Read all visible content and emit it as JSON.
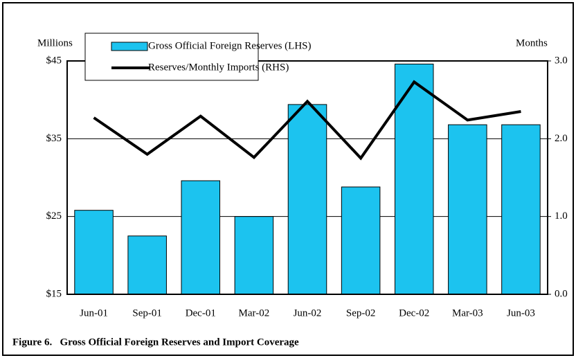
{
  "chart_data": {
    "type": "bar",
    "caption": "Figure 6.   Gross Official Foreign Reserves and Import Coverage",
    "y_label": "Millions",
    "y2_label": "Months",
    "categories": [
      "Jun-01",
      "Sep-01",
      "Dec-01",
      "Mar-02",
      "Jun-02",
      "Sep-02",
      "Dec-02",
      "Mar-03",
      "Jun-03"
    ],
    "series": [
      {
        "name": "Gross Official Foreign Reserves (LHS)",
        "type": "bar",
        "color": "#1cc3ef",
        "values": [
          25.8,
          22.5,
          29.6,
          25.0,
          39.4,
          28.8,
          44.6,
          36.8,
          36.8
        ]
      },
      {
        "name": "Reserves/Monthly Imports (RHS)",
        "type": "line",
        "axis": "y2",
        "color": "#000000",
        "values": [
          2.27,
          1.8,
          2.29,
          1.76,
          2.48,
          1.75,
          2.73,
          2.24,
          2.35
        ]
      }
    ],
    "ylim": [
      15,
      45
    ],
    "yticks": [
      {
        "value": 15,
        "label": "$15"
      },
      {
        "value": 25,
        "label": "$25"
      },
      {
        "value": 35,
        "label": "$35"
      },
      {
        "value": 45,
        "label": "$45"
      }
    ],
    "y2lim": [
      0,
      3
    ],
    "y2ticks": [
      {
        "value": 0,
        "label": "0.0"
      },
      {
        "value": 1,
        "label": "1.0"
      },
      {
        "value": 2,
        "label": "2.0"
      },
      {
        "value": 3,
        "label": "3.0"
      }
    ],
    "grid": true,
    "legend": "top-left"
  }
}
